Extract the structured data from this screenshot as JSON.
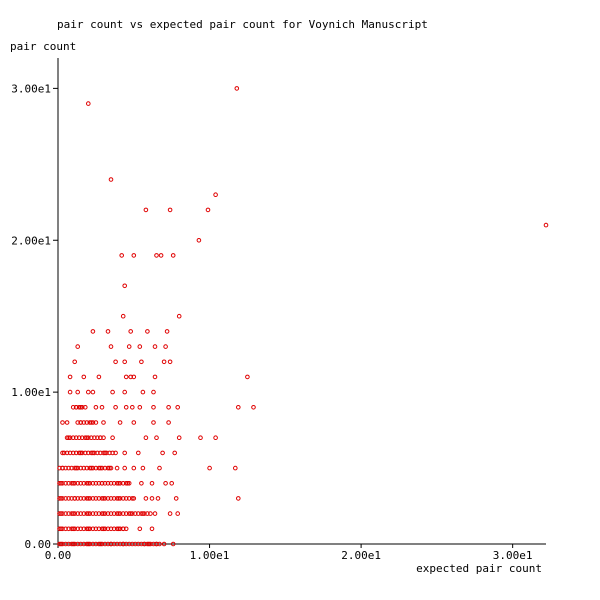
{
  "chart_data": {
    "type": "scatter",
    "title": "pair count vs expected pair count for Voynich Manuscript",
    "xlabel": "expected pair count",
    "ylabel": "pair count",
    "xlim": [
      0,
      32.2
    ],
    "ylim": [
      0,
      32
    ],
    "x_ticks": [
      {
        "value": 0,
        "label": "0.00"
      },
      {
        "value": 10,
        "label": "1.00e1"
      },
      {
        "value": 20,
        "label": "2.00e1"
      },
      {
        "value": 30,
        "label": "3.00e1"
      }
    ],
    "y_ticks": [
      {
        "value": 0,
        "label": "0.00"
      },
      {
        "value": 10,
        "label": "1.00e1"
      },
      {
        "value": 20,
        "label": "2.00e1"
      },
      {
        "value": 30,
        "label": "3.00e1"
      }
    ],
    "grid": false,
    "legend": "none",
    "marker_color": "#e00000",
    "series": [
      {
        "points": [
          [
            11.8,
            30
          ],
          [
            2.0,
            29
          ],
          [
            3.5,
            24
          ],
          [
            10.4,
            23
          ],
          [
            5.8,
            22
          ],
          [
            7.4,
            22
          ],
          [
            9.9,
            22
          ],
          [
            32.2,
            21
          ],
          [
            9.3,
            20
          ],
          [
            4.2,
            19
          ],
          [
            5.0,
            19
          ],
          [
            6.5,
            19
          ],
          [
            6.8,
            19
          ],
          [
            7.6,
            19
          ],
          [
            4.4,
            17
          ],
          [
            2.3,
            14
          ],
          [
            4.3,
            15
          ],
          [
            8.0,
            15
          ],
          [
            3.3,
            14
          ],
          [
            4.8,
            14
          ],
          [
            5.9,
            14
          ],
          [
            7.2,
            14
          ],
          [
            1.3,
            13
          ],
          [
            3.5,
            13
          ],
          [
            4.7,
            13
          ],
          [
            5.4,
            13
          ],
          [
            6.4,
            13
          ],
          [
            7.1,
            13
          ],
          [
            0.8,
            11
          ],
          [
            1.7,
            11
          ],
          [
            2.7,
            11
          ],
          [
            4.5,
            11
          ],
          [
            4.8,
            11
          ],
          [
            5.0,
            11
          ],
          [
            6.4,
            11
          ],
          [
            12.5,
            11
          ],
          [
            1.1,
            12
          ],
          [
            3.8,
            12
          ],
          [
            4.4,
            12
          ],
          [
            5.5,
            12
          ],
          [
            7.0,
            12
          ],
          [
            7.4,
            12
          ],
          [
            0.8,
            10
          ],
          [
            1.3,
            10
          ],
          [
            2.0,
            10
          ],
          [
            2.3,
            10
          ],
          [
            3.6,
            10
          ],
          [
            4.4,
            10
          ],
          [
            5.6,
            10
          ],
          [
            6.3,
            10
          ],
          [
            0.3,
            8
          ],
          [
            1.2,
            9
          ],
          [
            1.5,
            9
          ],
          [
            2.5,
            9
          ],
          [
            2.9,
            9
          ],
          [
            3.8,
            9
          ],
          [
            4.5,
            9
          ],
          [
            4.9,
            9
          ],
          [
            5.4,
            9
          ],
          [
            6.3,
            9
          ],
          [
            7.3,
            9
          ],
          [
            7.9,
            9
          ],
          [
            11.9,
            9
          ],
          [
            12.9,
            9
          ],
          [
            0.6,
            8
          ],
          [
            1.5,
            8
          ],
          [
            2.2,
            8
          ],
          [
            3.0,
            8
          ],
          [
            4.1,
            8
          ],
          [
            5.0,
            8
          ],
          [
            6.3,
            8
          ],
          [
            7.3,
            8
          ],
          [
            0.7,
            7
          ],
          [
            1.9,
            7
          ],
          [
            2.8,
            7
          ],
          [
            3.6,
            7
          ],
          [
            5.8,
            7
          ],
          [
            6.5,
            7
          ],
          [
            8.0,
            7
          ],
          [
            9.4,
            7
          ],
          [
            10.4,
            7
          ],
          [
            0.3,
            6
          ],
          [
            1.5,
            6
          ],
          [
            2.3,
            6
          ],
          [
            3.1,
            6
          ],
          [
            4.4,
            6
          ],
          [
            5.3,
            6
          ],
          [
            6.9,
            6
          ],
          [
            7.7,
            6
          ],
          [
            0.3,
            5
          ],
          [
            1.2,
            5
          ],
          [
            2.2,
            5
          ],
          [
            2.8,
            5
          ],
          [
            3.4,
            5
          ],
          [
            3.9,
            5
          ],
          [
            4.4,
            5
          ],
          [
            5.0,
            5
          ],
          [
            5.6,
            5
          ],
          [
            6.7,
            5
          ],
          [
            10.0,
            5
          ],
          [
            11.7,
            5
          ],
          [
            0.2,
            4
          ],
          [
            1.0,
            4
          ],
          [
            2.0,
            4
          ],
          [
            2.9,
            4
          ],
          [
            4.0,
            4
          ],
          [
            4.6,
            4
          ],
          [
            5.5,
            4
          ],
          [
            6.2,
            4
          ],
          [
            7.1,
            4
          ],
          [
            7.5,
            4
          ],
          [
            0.2,
            3
          ],
          [
            1.1,
            3
          ],
          [
            2.0,
            3
          ],
          [
            3.0,
            3
          ],
          [
            4.0,
            3
          ],
          [
            5.0,
            3
          ],
          [
            5.8,
            3
          ],
          [
            6.2,
            3
          ],
          [
            6.6,
            3
          ],
          [
            7.8,
            3
          ],
          [
            11.9,
            3
          ],
          [
            0.2,
            2
          ],
          [
            1.0,
            2
          ],
          [
            2.0,
            2
          ],
          [
            3.0,
            2
          ],
          [
            4.0,
            2
          ],
          [
            4.8,
            2
          ],
          [
            5.6,
            2
          ],
          [
            6.4,
            2
          ],
          [
            7.4,
            2
          ],
          [
            7.9,
            2
          ],
          [
            0.2,
            1
          ],
          [
            1.0,
            1
          ],
          [
            2.0,
            1
          ],
          [
            3.0,
            1
          ],
          [
            4.0,
            1
          ],
          [
            4.3,
            1
          ],
          [
            5.4,
            1
          ],
          [
            6.2,
            1
          ],
          [
            0.2,
            0
          ],
          [
            1.0,
            0
          ],
          [
            2.0,
            0
          ],
          [
            2.8,
            0
          ],
          [
            3.5,
            0
          ],
          [
            4.3,
            0
          ],
          [
            5.7,
            0
          ],
          [
            6.0,
            0
          ],
          [
            6.5,
            0
          ],
          [
            7.0,
            0
          ],
          [
            7.6,
            0
          ]
        ],
        "dense_bands": [
          {
            "y": 0,
            "x_from": 0.1,
            "x_to": 6.8
          },
          {
            "y": 1,
            "x_from": 0.1,
            "x_to": 4.5
          },
          {
            "y": 2,
            "x_from": 0.1,
            "x_to": 6.2
          },
          {
            "y": 3,
            "x_from": 0.1,
            "x_to": 5.0
          },
          {
            "y": 4,
            "x_from": 0.1,
            "x_to": 4.8
          },
          {
            "y": 5,
            "x_from": 0.1,
            "x_to": 3.5
          },
          {
            "y": 6,
            "x_from": 0.4,
            "x_to": 3.8
          },
          {
            "y": 7,
            "x_from": 0.6,
            "x_to": 3.0
          },
          {
            "y": 8,
            "x_from": 1.3,
            "x_to": 2.6
          },
          {
            "y": 9,
            "x_from": 1.0,
            "x_to": 1.8
          }
        ]
      }
    ]
  }
}
